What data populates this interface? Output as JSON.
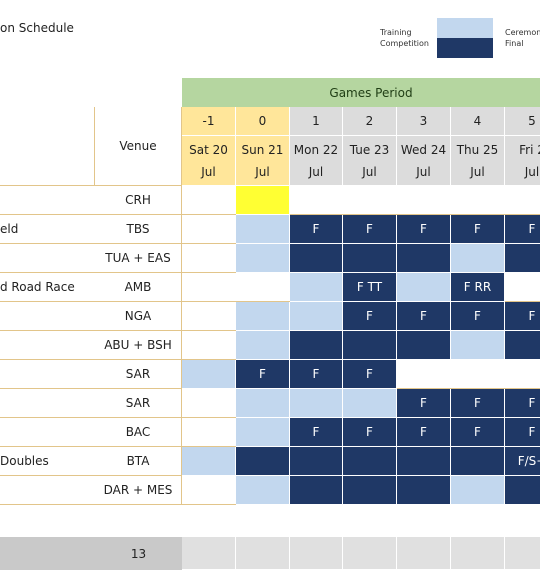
{
  "title": "on Schedule",
  "legend": {
    "left_labels": [
      "Training",
      "Competition"
    ],
    "right_labels": [
      "Ceremon",
      "Final"
    ]
  },
  "colors": {
    "final": "#1f3866",
    "training": "#c2d7ee",
    "games_period": "#b5d6a0",
    "pre_games": "#ffe69a",
    "day_header": "#dcdcdc",
    "highlight": "#ffff33"
  },
  "header": {
    "games_period": "Games Period",
    "venue": "Venue",
    "days": [
      {
        "num": "-1",
        "day": "Sat 20",
        "month": "Jul"
      },
      {
        "num": "0",
        "day": "Sun 21",
        "month": "Jul"
      },
      {
        "num": "1",
        "day": "Mon 22",
        "month": "Jul"
      },
      {
        "num": "2",
        "day": "Tue 23",
        "month": "Jul"
      },
      {
        "num": "3",
        "day": "Wed 24",
        "month": "Jul"
      },
      {
        "num": "4",
        "day": "Thu 25",
        "month": "Jul"
      },
      {
        "num": "5",
        "day": "Fri 2",
        "month": "Jul"
      }
    ]
  },
  "rows": [
    {
      "sport": "",
      "venue": "CRH",
      "cells": [
        "",
        "Y",
        "",
        "",
        "",
        "",
        ""
      ],
      "labels": [
        "",
        "",
        "",
        "",
        "",
        "",
        ""
      ]
    },
    {
      "sport": "eld",
      "venue": "TBS",
      "cells": [
        "",
        "L",
        "D",
        "D",
        "D",
        "D",
        "D"
      ],
      "labels": [
        "",
        "",
        "F",
        "F",
        "F",
        "F",
        "F"
      ]
    },
    {
      "sport": "",
      "venue": "TUA + EAS",
      "cells": [
        "",
        "L",
        "D",
        "D",
        "D",
        "L",
        "D"
      ],
      "labels": [
        "",
        "",
        "",
        "",
        "",
        "",
        ""
      ]
    },
    {
      "sport": "d Road Race",
      "venue": "AMB",
      "cells": [
        "",
        "",
        "L",
        "D",
        "L",
        "D",
        ""
      ],
      "labels": [
        "",
        "",
        "",
        "F TT",
        "",
        "F RR",
        ""
      ]
    },
    {
      "sport": "",
      "venue": "NGA",
      "cells": [
        "",
        "L",
        "L",
        "D",
        "D",
        "D",
        "D"
      ],
      "labels": [
        "",
        "",
        "",
        "F",
        "F",
        "F",
        "F"
      ]
    },
    {
      "sport": "",
      "venue": "ABU + BSH",
      "cells": [
        "",
        "L",
        "D",
        "D",
        "D",
        "L",
        "D"
      ],
      "labels": [
        "",
        "",
        "",
        "",
        "",
        "",
        ""
      ]
    },
    {
      "sport": "",
      "venue": "SAR",
      "cells": [
        "L",
        "D",
        "D",
        "D",
        "",
        "",
        ""
      ],
      "labels": [
        "",
        "F",
        "F",
        "F",
        "",
        "",
        ""
      ]
    },
    {
      "sport": "",
      "venue": "SAR",
      "cells": [
        "",
        "L",
        "L",
        "L",
        "D",
        "D",
        "D"
      ],
      "labels": [
        "",
        "",
        "",
        "",
        "F",
        "F",
        "F"
      ]
    },
    {
      "sport": "",
      "venue": "BAC",
      "cells": [
        "",
        "L",
        "D",
        "D",
        "D",
        "D",
        "D"
      ],
      "labels": [
        "",
        "",
        "F",
        "F",
        "F",
        "F",
        "F"
      ]
    },
    {
      "sport": "Doubles",
      "venue": "BTA",
      "cells": [
        "L",
        "D",
        "D",
        "D",
        "D",
        "D",
        "D"
      ],
      "labels": [
        "",
        "",
        "",
        "",
        "",
        "",
        "F/S+"
      ]
    },
    {
      "sport": "",
      "venue": "DAR + MES",
      "cells": [
        "",
        "L",
        "D",
        "D",
        "D",
        "L",
        "D"
      ],
      "labels": [
        "",
        "",
        "",
        "",
        "",
        "",
        ""
      ]
    }
  ],
  "footer": {
    "count": "13"
  }
}
